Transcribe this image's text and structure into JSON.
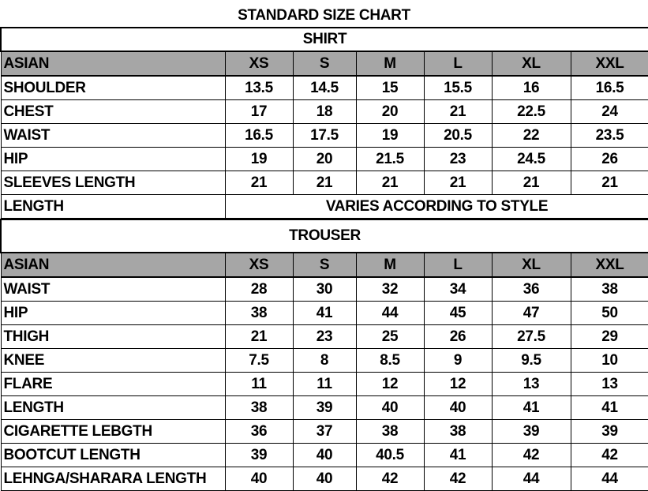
{
  "title": "STANDARD SIZE CHART",
  "shirt": {
    "label": "SHIRT",
    "header": [
      "ASIAN",
      "XS",
      "S",
      "M",
      "L",
      "XL",
      "XXL"
    ],
    "rows": [
      [
        "SHOULDER",
        "13.5",
        "14.5",
        "15",
        "15.5",
        "16",
        "16.5"
      ],
      [
        "CHEST",
        "17",
        "18",
        "20",
        "21",
        "22.5",
        "24"
      ],
      [
        "WAIST",
        "16.5",
        "17.5",
        "19",
        "20.5",
        "22",
        "23.5"
      ],
      [
        "HIP",
        "19",
        "20",
        "21.5",
        "23",
        "24.5",
        "26"
      ],
      [
        "SLEEVES LENGTH",
        "21",
        "21",
        "21",
        "21",
        "21",
        "21"
      ]
    ],
    "length_label": "LENGTH",
    "length_note": "VARIES ACCORDING TO STYLE"
  },
  "trouser": {
    "label": "TROUSER",
    "header": [
      "ASIAN",
      "XS",
      "S",
      "M",
      "L",
      "XL",
      "XXL"
    ],
    "rows": [
      [
        "WAIST",
        "28",
        "30",
        "32",
        "34",
        "36",
        "38"
      ],
      [
        "HIP",
        "38",
        "41",
        "44",
        "45",
        "47",
        "50"
      ],
      [
        "THIGH",
        "21",
        "23",
        "25",
        "26",
        "27.5",
        "29"
      ],
      [
        "KNEE",
        "7.5",
        "8",
        "8.5",
        "9",
        "9.5",
        "10"
      ],
      [
        "FLARE",
        "11",
        "11",
        "12",
        "12",
        "13",
        "13"
      ],
      [
        "LENGTH",
        "38",
        "39",
        "40",
        "40",
        "41",
        "41"
      ],
      [
        "CIGARETTE LEBGTH",
        "36",
        "37",
        "38",
        "38",
        "39",
        "39"
      ],
      [
        "BOOTCUT LENGTH",
        "39",
        "40",
        "40.5",
        "41",
        "42",
        "42"
      ],
      [
        "LEHNGA/SHARARA LENGTH",
        "40",
        "40",
        "42",
        "42",
        "44",
        "44"
      ]
    ]
  },
  "colors": {
    "header_bg": "#a6a6a6"
  }
}
